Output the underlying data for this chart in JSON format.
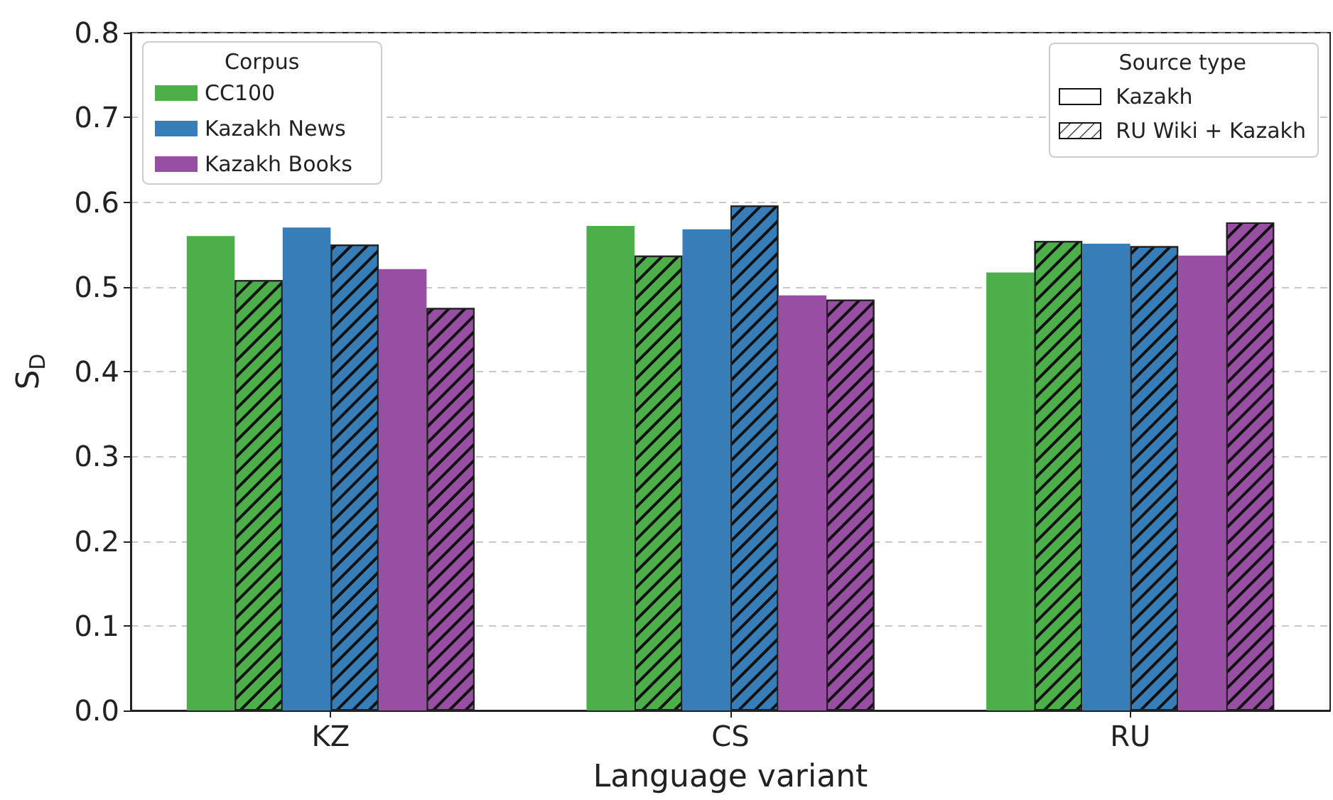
{
  "chart_data": {
    "type": "bar",
    "xlabel": "Language variant",
    "ylabel": "S$_{D}$",
    "categories": [
      "KZ",
      "CS",
      "RU"
    ],
    "series": [
      {
        "name": "CC100",
        "color": "#4daf4a",
        "values": [
          0.56,
          0.572,
          0.517
        ]
      },
      {
        "color": "#4daf4a",
        "values": [
          0.508,
          0.537,
          0.554
        ]
      },
      {
        "name": "Kazakh News",
        "color": "#377eb8",
        "values": [
          0.57,
          0.568,
          0.551
        ]
      },
      {
        "color": "#377eb8",
        "values": [
          0.55,
          0.596,
          0.548
        ]
      },
      {
        "name": "Kazakh Books",
        "color": "#984ea3",
        "values": [
          0.521,
          0.49,
          0.537
        ]
      },
      {
        "color": "#984ea3",
        "values": [
          0.475,
          0.485,
          0.576
        ]
      }
    ],
    "ylim": [
      0,
      0.8
    ],
    "yticks": [
      {
        "value": 0,
        "label": "0.0"
      },
      {
        "value": 0.1,
        "label": "0.1"
      },
      {
        "value": 0.2,
        "label": "0.2"
      },
      {
        "value": 0.3,
        "label": "0.3"
      },
      {
        "value": 0.4,
        "label": "0.4"
      },
      {
        "value": 0.5,
        "label": "0.5"
      },
      {
        "value": 0.6,
        "label": "0.6"
      },
      {
        "value": 0.7,
        "label": "0.7"
      },
      {
        "value": 0.8,
        "label": "0.8"
      }
    ],
    "grid": "y",
    "legend": "top left",
    "legend_title": "Corpus",
    "annotations": [
      "Source type",
      "Kazakh",
      "RU Wiki + Kazakh"
    ]
  }
}
